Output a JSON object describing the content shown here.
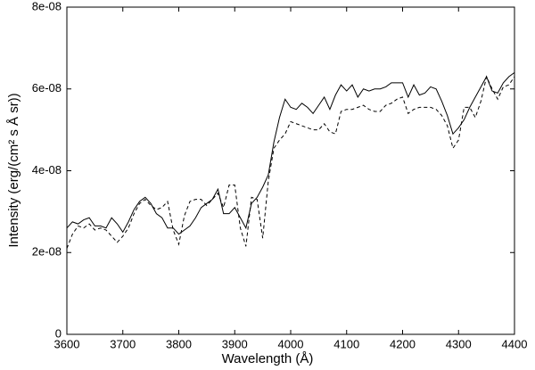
{
  "chart_data": {
    "type": "line",
    "xlabel": "Wavelength (Å)",
    "ylabel": "Intensity (erg/(cm² s Å sr))",
    "x": [
      3600,
      3610,
      3620,
      3630,
      3640,
      3650,
      3660,
      3670,
      3680,
      3690,
      3700,
      3710,
      3720,
      3730,
      3740,
      3750,
      3760,
      3770,
      3780,
      3790,
      3800,
      3810,
      3820,
      3830,
      3840,
      3850,
      3860,
      3870,
      3880,
      3890,
      3900,
      3910,
      3920,
      3930,
      3940,
      3950,
      3960,
      3970,
      3980,
      3990,
      4000,
      4010,
      4020,
      4030,
      4040,
      4050,
      4060,
      4070,
      4080,
      4090,
      4100,
      4110,
      4120,
      4130,
      4140,
      4150,
      4160,
      4170,
      4180,
      4190,
      4200,
      4210,
      4220,
      4230,
      4240,
      4250,
      4260,
      4270,
      4280,
      4290,
      4300,
      4310,
      4320,
      4330,
      4340,
      4350,
      4360,
      4370,
      4380,
      4390,
      4400
    ],
    "series": [
      {
        "color": "#000000",
        "linestyle": "solid",
        "values": [
          2.6e-08,
          2.75e-08,
          2.7e-08,
          2.8e-08,
          2.85e-08,
          2.65e-08,
          2.65e-08,
          2.6e-08,
          2.85e-08,
          2.7e-08,
          2.5e-08,
          2.75e-08,
          3.05e-08,
          3.25e-08,
          3.35e-08,
          3.2e-08,
          2.95e-08,
          2.85e-08,
          2.6e-08,
          2.6e-08,
          2.45e-08,
          2.55e-08,
          2.65e-08,
          2.85e-08,
          3.1e-08,
          3.2e-08,
          3.3e-08,
          3.55e-08,
          2.95e-08,
          2.95e-08,
          3.1e-08,
          2.85e-08,
          2.6e-08,
          3.2e-08,
          3.35e-08,
          3.6e-08,
          3.9e-08,
          4.7e-08,
          5.3e-08,
          5.75e-08,
          5.55e-08,
          5.5e-08,
          5.65e-08,
          5.55e-08,
          5.4e-08,
          5.6e-08,
          5.8e-08,
          5.5e-08,
          5.85e-08,
          6.1e-08,
          5.95e-08,
          6.1e-08,
          5.8e-08,
          6e-08,
          5.95e-08,
          6e-08,
          6e-08,
          6.05e-08,
          6.15e-08,
          6.15e-08,
          6.15e-08,
          5.8e-08,
          6.1e-08,
          5.85e-08,
          5.9e-08,
          6.05e-08,
          6e-08,
          5.7e-08,
          5.35e-08,
          4.9e-08,
          5.05e-08,
          5.25e-08,
          5.55e-08,
          5.8e-08,
          6.05e-08,
          6.3e-08,
          5.95e-08,
          5.9e-08,
          6.15e-08,
          6.3e-08,
          6.4e-08
        ]
      },
      {
        "color": "#000000",
        "linestyle": "dashed",
        "values": [
          2.1e-08,
          2.45e-08,
          2.65e-08,
          2.6e-08,
          2.7e-08,
          2.55e-08,
          2.6e-08,
          2.55e-08,
          2.4e-08,
          2.25e-08,
          2.4e-08,
          2.6e-08,
          2.95e-08,
          3.2e-08,
          3.3e-08,
          3.15e-08,
          3.05e-08,
          3.1e-08,
          3.25e-08,
          2.55e-08,
          2.2e-08,
          2.9e-08,
          3.25e-08,
          3.3e-08,
          3.3e-08,
          3.15e-08,
          3.3e-08,
          3.45e-08,
          3.1e-08,
          3.65e-08,
          3.65e-08,
          2.6e-08,
          2.15e-08,
          3.35e-08,
          3.3e-08,
          2.35e-08,
          3.75e-08,
          4.55e-08,
          4.75e-08,
          4.9e-08,
          5.2e-08,
          5.15e-08,
          5.1e-08,
          5.05e-08,
          5e-08,
          5e-08,
          5.15e-08,
          4.95e-08,
          4.9e-08,
          5.45e-08,
          5.5e-08,
          5.5e-08,
          5.55e-08,
          5.6e-08,
          5.5e-08,
          5.45e-08,
          5.45e-08,
          5.6e-08,
          5.65e-08,
          5.75e-08,
          5.8e-08,
          5.4e-08,
          5.5e-08,
          5.55e-08,
          5.55e-08,
          5.55e-08,
          5.5e-08,
          5.35e-08,
          5.1e-08,
          4.55e-08,
          4.75e-08,
          5.55e-08,
          5.55e-08,
          5.3e-08,
          5.7e-08,
          6.3e-08,
          6e-08,
          5.75e-08,
          6.05e-08,
          6.1e-08,
          6.3e-08
        ]
      }
    ],
    "xlim": [
      3600,
      4400
    ],
    "xticks": [
      3600,
      3700,
      3800,
      3900,
      4000,
      4100,
      4200,
      4300,
      4400
    ],
    "ylim": [
      0,
      8e-08
    ],
    "yticks": [
      0,
      {
        "value": 2e-08,
        "label": "2e-08"
      },
      {
        "value": 4e-08,
        "label": "4e-08"
      },
      {
        "value": 6e-08,
        "label": "6e-08"
      },
      {
        "value": 8e-08,
        "label": "8e-08"
      }
    ],
    "grid": false
  }
}
